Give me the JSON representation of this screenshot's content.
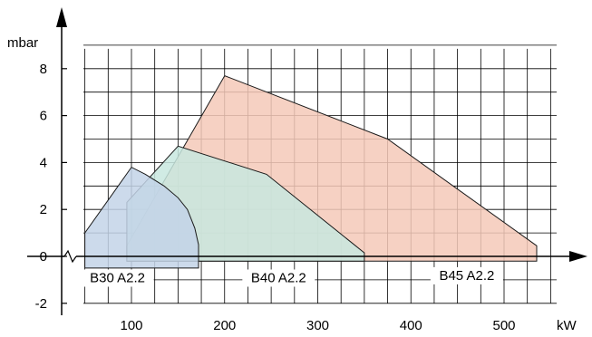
{
  "chart_data": {
    "type": "area",
    "title": "",
    "xlabel": "kW",
    "ylabel": "mbar",
    "xlim": [
      30,
      540
    ],
    "ylim": [
      -2,
      9
    ],
    "x_ticks": [
      100,
      200,
      300,
      400,
      500
    ],
    "y_ticks": [
      -2,
      0,
      2,
      4,
      6,
      8
    ],
    "grid": true,
    "series": [
      {
        "name": "B45 A2.2",
        "color": "#f5c9b8",
        "polygon": [
          [
            95,
            0.45
          ],
          [
            200,
            7.7
          ],
          [
            375,
            5.0
          ],
          [
            535,
            0.45
          ],
          [
            535,
            -0.2
          ],
          [
            95,
            -0.2
          ]
        ]
      },
      {
        "name": "B40 A2.2",
        "color": "#c8e8df",
        "polygon": [
          [
            95,
            2.3
          ],
          [
            150,
            4.7
          ],
          [
            245,
            3.5
          ],
          [
            350,
            0.15
          ],
          [
            350,
            -0.2
          ],
          [
            95,
            -0.2
          ]
        ]
      },
      {
        "name": "B30 A2.2",
        "color": "#c3d3e8",
        "polygon": [
          [
            50,
            1.0
          ],
          [
            100,
            3.8
          ],
          [
            115,
            3.5
          ],
          [
            135,
            3.0
          ],
          [
            150,
            2.5
          ],
          [
            160,
            2.0
          ],
          [
            168,
            1.2
          ],
          [
            172,
            0.5
          ],
          [
            172,
            -0.5
          ],
          [
            50,
            -0.5
          ],
          [
            50,
            0.6
          ]
        ]
      }
    ],
    "labels": [
      {
        "text": "B30 A2.2",
        "x": 85,
        "y": -1.1
      },
      {
        "text": "B40 A2.2",
        "x": 258,
        "y": -1.1
      },
      {
        "text": "B45 A2.2",
        "x": 460,
        "y": -1.0
      }
    ]
  }
}
